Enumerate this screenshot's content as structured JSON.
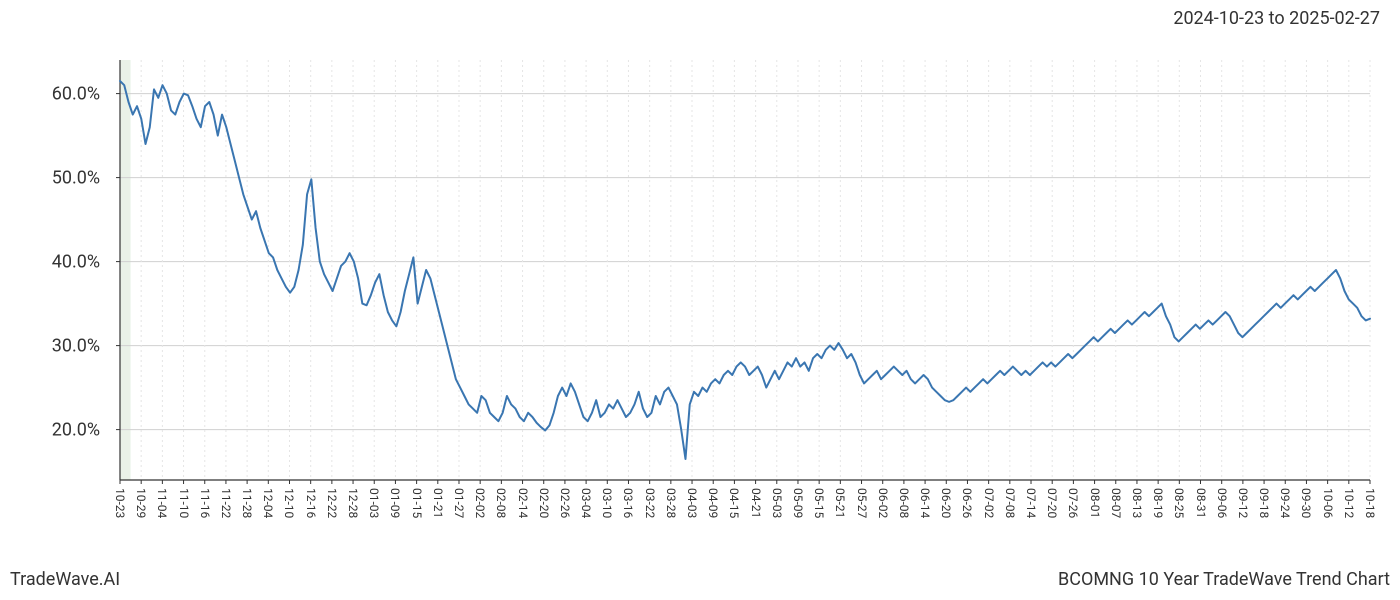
{
  "date_range": "2024-10-23 to 2025-02-27",
  "footer_left": "TradeWave.AI",
  "footer_right": "BCOMNG 10 Year TradeWave Trend Chart",
  "chart": {
    "type": "line",
    "line_color": "#3a76b1",
    "line_width": 2,
    "background_color": "#ffffff",
    "highlight_fill": "#d9e8d5",
    "highlight_opacity": 0.55,
    "grid_major_color": "#d0d0d0",
    "grid_minor_color": "#e5e5e5",
    "grid_minor_dash": "2,3",
    "axis_color": "#333333",
    "ylim": [
      14,
      64
    ],
    "y_ticks": [
      20,
      30,
      40,
      50,
      60
    ],
    "y_tick_labels": [
      "20.0%",
      "30.0%",
      "40.0%",
      "50.0%",
      "60.0%"
    ],
    "y_label_fontsize": 18,
    "x_label_fontsize": 12,
    "x_ticks": [
      "10-23",
      "10-29",
      "11-04",
      "11-10",
      "11-16",
      "11-22",
      "11-28",
      "12-04",
      "12-10",
      "12-16",
      "12-22",
      "12-28",
      "01-03",
      "01-09",
      "01-15",
      "01-21",
      "01-27",
      "02-02",
      "02-08",
      "02-14",
      "02-20",
      "02-26",
      "03-04",
      "03-10",
      "03-16",
      "03-22",
      "03-28",
      "04-03",
      "04-09",
      "04-15",
      "04-21",
      "05-03",
      "05-09",
      "05-15",
      "05-21",
      "05-27",
      "06-02",
      "06-08",
      "06-14",
      "06-20",
      "06-26",
      "07-02",
      "07-08",
      "07-14",
      "07-20",
      "07-26",
      "08-01",
      "08-07",
      "08-13",
      "08-19",
      "08-25",
      "08-31",
      "09-06",
      "09-12",
      "09-18",
      "09-24",
      "09-30",
      "10-06",
      "10-12",
      "10-18"
    ],
    "highlight_x_start": "10-23",
    "highlight_x_end": "02-27",
    "series": [
      61.5,
      61.0,
      59.0,
      57.5,
      58.5,
      57.0,
      54.0,
      56.0,
      60.5,
      59.5,
      61.0,
      60.0,
      58.0,
      57.5,
      59.0,
      60.0,
      59.8,
      58.5,
      57.0,
      56.0,
      58.5,
      59.0,
      57.5,
      55.0,
      57.5,
      56.0,
      54.0,
      52.0,
      50.0,
      48.0,
      46.5,
      45.0,
      46.0,
      44.0,
      42.5,
      41.0,
      40.5,
      39.0,
      38.0,
      37.0,
      36.3,
      37.0,
      39.0,
      42.0,
      48.0,
      49.8,
      44.0,
      40.0,
      38.5,
      37.5,
      36.5,
      38.0,
      39.5,
      40.0,
      41.0,
      40.0,
      38.0,
      35.0,
      34.8,
      36.0,
      37.5,
      38.5,
      36.0,
      34.0,
      33.0,
      32.3,
      34.0,
      36.5,
      38.5,
      40.5,
      35.0,
      37.0,
      39.0,
      38.0,
      36.0,
      34.0,
      32.0,
      30.0,
      28.0,
      26.0,
      25.0,
      24.0,
      23.0,
      22.5,
      22.0,
      24.0,
      23.5,
      22.0,
      21.5,
      21.0,
      22.0,
      24.0,
      23.0,
      22.5,
      21.5,
      21.0,
      22.0,
      21.5,
      20.8,
      20.3,
      19.9,
      20.5,
      22.0,
      24.0,
      25.0,
      24.0,
      25.5,
      24.5,
      23.0,
      21.5,
      21.0,
      22.0,
      23.5,
      21.5,
      22.0,
      23.0,
      22.5,
      23.5,
      22.5,
      21.5,
      22.0,
      23.0,
      24.5,
      22.5,
      21.5,
      22.0,
      24.0,
      23.0,
      24.5,
      25.0,
      24.0,
      23.0,
      20.0,
      16.5,
      23.0,
      24.5,
      24.0,
      25.0,
      24.5,
      25.5,
      26.0,
      25.5,
      26.5,
      27.0,
      26.5,
      27.5,
      28.0,
      27.5,
      26.5,
      27.0,
      27.5,
      26.5,
      25.0,
      26.0,
      27.0,
      26.0,
      27.0,
      28.0,
      27.5,
      28.5,
      27.5,
      28.0,
      27.0,
      28.5,
      29.0,
      28.5,
      29.5,
      30.0,
      29.5,
      30.3,
      29.5,
      28.5,
      29.0,
      28.0,
      26.5,
      25.5,
      26.0,
      26.5,
      27.0,
      26.0,
      26.5,
      27.0,
      27.5,
      27.0,
      26.5,
      27.0,
      26.0,
      25.5,
      26.0,
      26.5,
      26.0,
      25.0,
      24.5,
      24.0,
      23.5,
      23.3,
      23.5,
      24.0,
      24.5,
      25.0,
      24.5,
      25.0,
      25.5,
      26.0,
      25.5,
      26.0,
      26.5,
      27.0,
      26.5,
      27.0,
      27.5,
      27.0,
      26.5,
      27.0,
      26.5,
      27.0,
      27.5,
      28.0,
      27.5,
      28.0,
      27.5,
      28.0,
      28.5,
      29.0,
      28.5,
      29.0,
      29.5,
      30.0,
      30.5,
      31.0,
      30.5,
      31.0,
      31.5,
      32.0,
      31.5,
      32.0,
      32.5,
      33.0,
      32.5,
      33.0,
      33.5,
      34.0,
      33.5,
      34.0,
      34.5,
      35.0,
      33.5,
      32.5,
      31.0,
      30.5,
      31.0,
      31.5,
      32.0,
      32.5,
      32.0,
      32.5,
      33.0,
      32.5,
      33.0,
      33.5,
      34.0,
      33.5,
      32.5,
      31.5,
      31.0,
      31.5,
      32.0,
      32.5,
      33.0,
      33.5,
      34.0,
      34.5,
      35.0,
      34.5,
      35.0,
      35.5,
      36.0,
      35.5,
      36.0,
      36.5,
      37.0,
      36.5,
      37.0,
      37.5,
      38.0,
      38.5,
      39.0,
      38.0,
      36.5,
      35.5,
      35.0,
      34.5,
      33.5,
      33.0,
      33.2
    ]
  }
}
